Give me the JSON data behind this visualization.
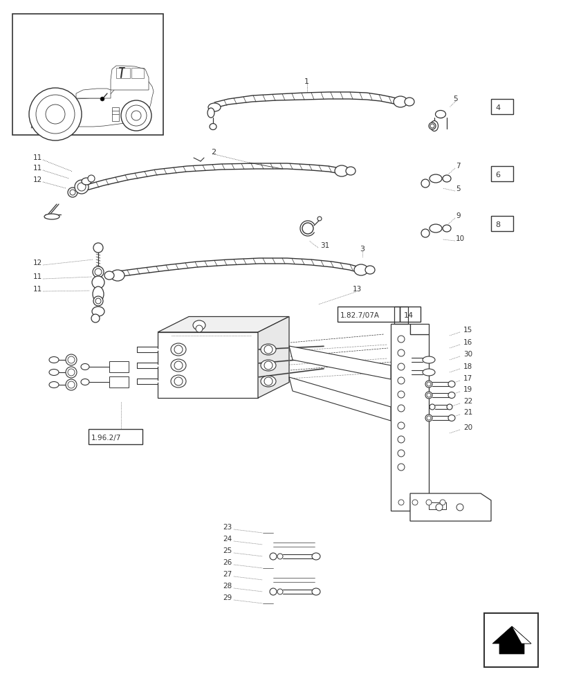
{
  "bg_color": "#ffffff",
  "line_color": "#333333",
  "fig_width": 8.28,
  "fig_height": 10.0,
  "dpi": 100,
  "labels": {
    "part1": "1",
    "part2": "2",
    "part3": "3",
    "part4": "4",
    "part5": "5",
    "part6": "6",
    "part7": "7",
    "part8": "8",
    "part9": "9",
    "part10": "10",
    "part11": "11",
    "part12": "12",
    "part13": "13",
    "part14": "14",
    "part15": "15",
    "part16": "16",
    "part17": "17",
    "part18": "18",
    "part19": "19",
    "part20": "20",
    "part21": "21",
    "part22": "22",
    "part23": "23",
    "part24": "24",
    "part25": "25",
    "part26": "26",
    "part27": "27",
    "part28": "28",
    "part29": "29",
    "part30": "30",
    "part31": "31",
    "ref1": "1.82.7/07A",
    "ref2": "1.96.2/7"
  }
}
